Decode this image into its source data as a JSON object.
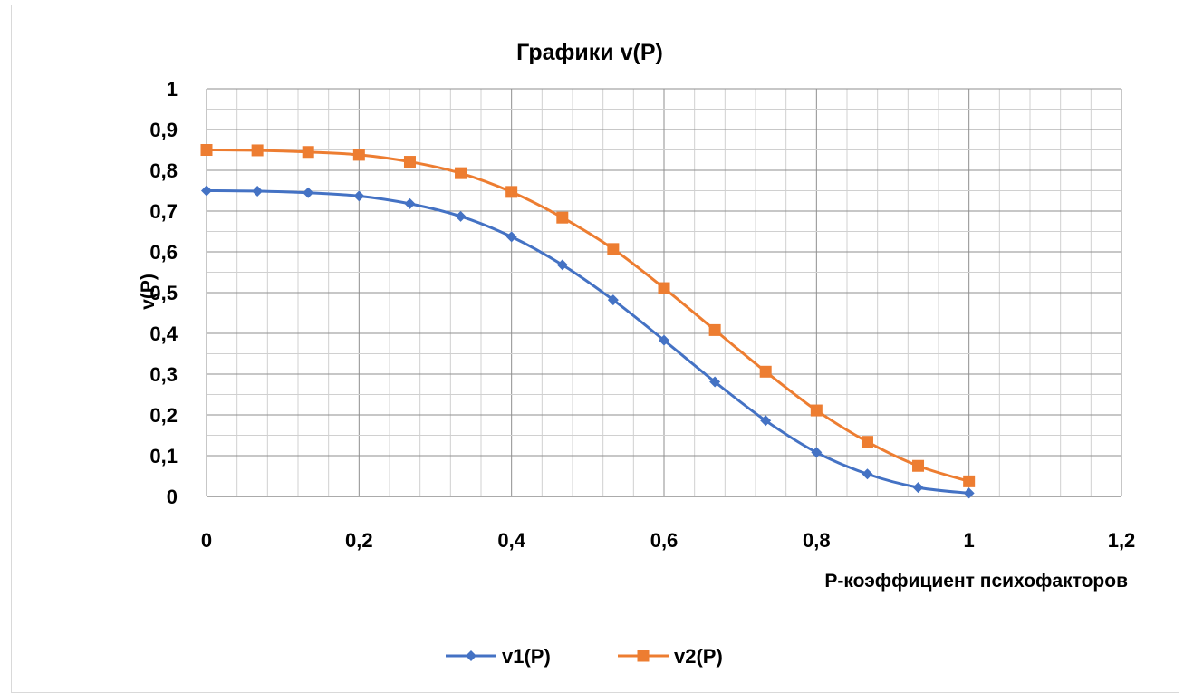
{
  "chart_data": {
    "type": "line",
    "title": "Графики v(P)",
    "xlabel": "P-коэффициент психофакторов",
    "ylabel": "v(P)",
    "xlim": [
      0,
      1.2
    ],
    "ylim": [
      0,
      1
    ],
    "x_ticks": [
      "0",
      "0,2",
      "0,4",
      "0,6",
      "0,8",
      "1",
      "1,2"
    ],
    "y_ticks": [
      "0",
      "0,1",
      "0,2",
      "0,3",
      "0,4",
      "0,5",
      "0,6",
      "0,7",
      "0,8",
      "0,9",
      "1"
    ],
    "grid": true,
    "legend_position": "bottom",
    "x": [
      0,
      0.0667,
      0.1333,
      0.2,
      0.2667,
      0.3333,
      0.4,
      0.4667,
      0.5333,
      0.6,
      0.6667,
      0.7333,
      0.8,
      0.8667,
      0.9333,
      1.0
    ],
    "series": [
      {
        "name": "v1(P)",
        "color": "#4472c4",
        "marker": "diamond",
        "values": [
          0.75,
          0.749,
          0.745,
          0.737,
          0.718,
          0.687,
          0.637,
          0.568,
          0.482,
          0.383,
          0.281,
          0.186,
          0.108,
          0.055,
          0.022,
          0.008
        ]
      },
      {
        "name": "v2(P)",
        "color": "#ed7d31",
        "marker": "square",
        "values": [
          0.85,
          0.849,
          0.845,
          0.838,
          0.821,
          0.793,
          0.747,
          0.684,
          0.607,
          0.511,
          0.408,
          0.306,
          0.211,
          0.134,
          0.075,
          0.037
        ]
      }
    ]
  }
}
